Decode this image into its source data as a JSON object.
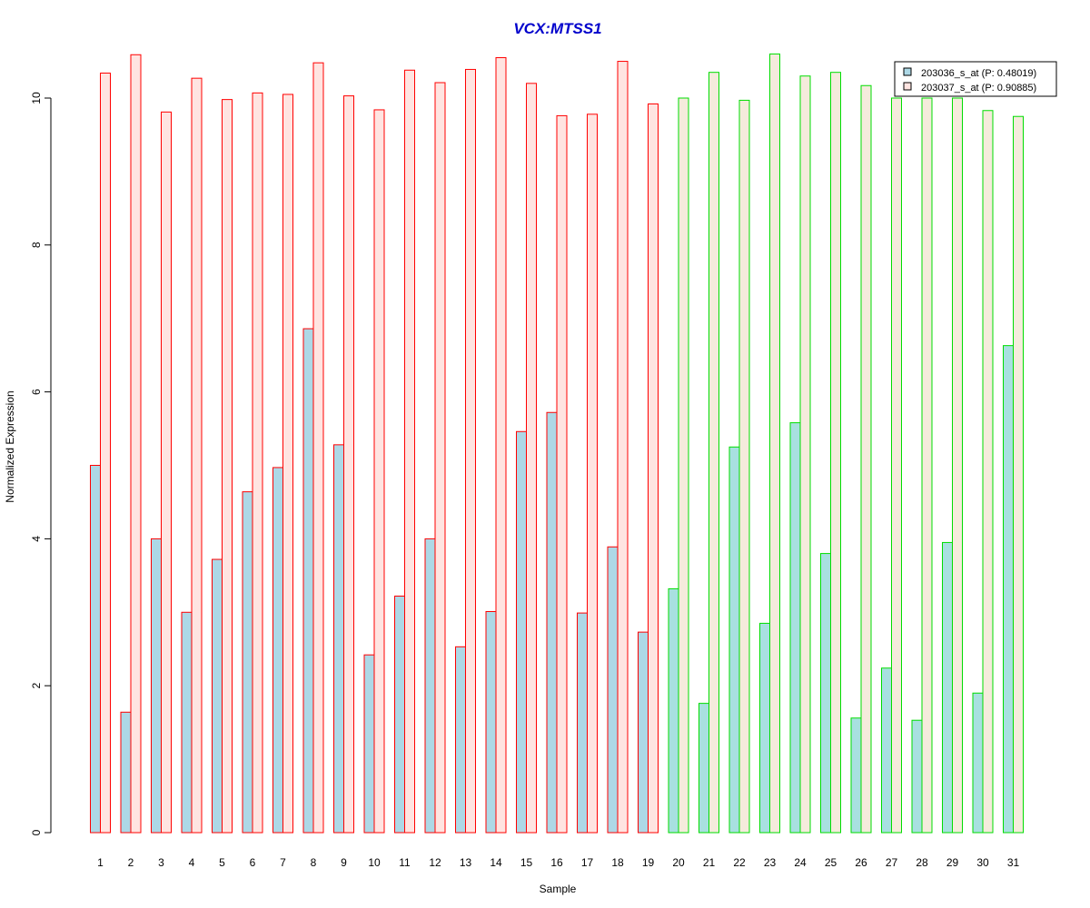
{
  "chart_data": {
    "type": "bar",
    "title": "VCX:MTSS1",
    "xlabel": "Sample",
    "ylabel": "Normalized Expression",
    "ylim": [
      0,
      10.6
    ],
    "yticks": [
      0,
      2,
      4,
      6,
      8,
      10
    ],
    "grid": false,
    "legend_position": "top-right",
    "categories": [
      "1",
      "2",
      "3",
      "4",
      "5",
      "6",
      "7",
      "8",
      "9",
      "10",
      "11",
      "12",
      "13",
      "14",
      "15",
      "16",
      "17",
      "18",
      "19",
      "20",
      "21",
      "22",
      "23",
      "24",
      "25",
      "26",
      "27",
      "28",
      "29",
      "30",
      "31"
    ],
    "groups": [
      {
        "samples": [
          1,
          19
        ],
        "border_color": "#ff0000"
      },
      {
        "samples": [
          20,
          31
        ],
        "border_color": "#00dd00"
      }
    ],
    "series": [
      {
        "name": "203036_s_at (P: 0.48019)",
        "fill_group1": "#add8e6",
        "fill_group2": "#a8e0e0",
        "values": [
          5.0,
          1.64,
          4.0,
          3.0,
          3.72,
          4.64,
          4.97,
          6.86,
          5.28,
          2.42,
          3.22,
          4.0,
          2.53,
          3.01,
          5.46,
          5.72,
          2.99,
          3.89,
          2.73,
          3.32,
          1.76,
          5.25,
          2.85,
          5.58,
          3.8,
          1.56,
          2.24,
          1.53,
          3.95,
          1.9,
          6.63
        ]
      },
      {
        "name": "203037_s_at (P: 0.90885)",
        "fill_group1": "#ffe4e1",
        "fill_group2": "#f5ebdc",
        "values": [
          10.34,
          10.59,
          9.81,
          10.27,
          9.98,
          10.07,
          10.05,
          10.48,
          10.03,
          9.84,
          10.38,
          10.21,
          10.39,
          10.55,
          10.2,
          9.76,
          9.78,
          10.5,
          9.92,
          10.0,
          10.35,
          9.97,
          10.6,
          10.3,
          10.35,
          10.17,
          10.0,
          10.0,
          10.0,
          9.83,
          9.75
        ]
      }
    ]
  }
}
